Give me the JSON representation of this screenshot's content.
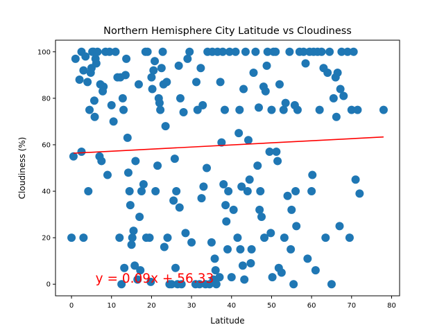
{
  "chart_data": {
    "type": "scatter",
    "title": "Northern Hemisphere City Latitude vs Cloudiness",
    "xlabel": "Latitude",
    "ylabel": "Cloudiness (%)",
    "xlim": [
      -4,
      82
    ],
    "ylim": [
      -5,
      105
    ],
    "xticks": [
      0,
      10,
      20,
      30,
      40,
      50,
      60,
      70,
      80
    ],
    "yticks": [
      0,
      20,
      40,
      60,
      80,
      100
    ],
    "grid": false,
    "marker_color": "#1f77b4",
    "regression": {
      "slope": 0.09,
      "intercept": 56.33,
      "x_range": [
        0.5,
        78
      ],
      "color": "#ff0000",
      "equation_label": "y = 0.09x + 56.33",
      "equation_anchor": [
        6,
        0
      ]
    },
    "points": [
      [
        0,
        20
      ],
      [
        0.5,
        55
      ],
      [
        1,
        97
      ],
      [
        2,
        88
      ],
      [
        2.5,
        57
      ],
      [
        2.5,
        100
      ],
      [
        3,
        20
      ],
      [
        3,
        92
      ],
      [
        3.5,
        98
      ],
      [
        4,
        87
      ],
      [
        4.2,
        40
      ],
      [
        4.5,
        75
      ],
      [
        4.8,
        91
      ],
      [
        5,
        93
      ],
      [
        5.2,
        100
      ],
      [
        5.5,
        100
      ],
      [
        5.7,
        79
      ],
      [
        5.8,
        72
      ],
      [
        6,
        97
      ],
      [
        6.2,
        95
      ],
      [
        6.5,
        100
      ],
      [
        7,
        55
      ],
      [
        7.2,
        86
      ],
      [
        7.5,
        53
      ],
      [
        7.8,
        83
      ],
      [
        8,
        85
      ],
      [
        8.5,
        100
      ],
      [
        9,
        47
      ],
      [
        9.5,
        100
      ],
      [
        10,
        77
      ],
      [
        10.5,
        70
      ],
      [
        11,
        100
      ],
      [
        11.5,
        89
      ],
      [
        12,
        20
      ],
      [
        12.2,
        89
      ],
      [
        12.5,
        0
      ],
      [
        12.8,
        80
      ],
      [
        13,
        75
      ],
      [
        13.2,
        7
      ],
      [
        13.5,
        90
      ],
      [
        13.7,
        97
      ],
      [
        14,
        63
      ],
      [
        14.2,
        48
      ],
      [
        14.5,
        40
      ],
      [
        14.7,
        34
      ],
      [
        15,
        17
      ],
      [
        15.2,
        20
      ],
      [
        15.5,
        23
      ],
      [
        15.8,
        8
      ],
      [
        16,
        53
      ],
      [
        16.5,
        2
      ],
      [
        16.8,
        86
      ],
      [
        17,
        29
      ],
      [
        17.2,
        6
      ],
      [
        17.5,
        40
      ],
      [
        18,
        43
      ],
      [
        18.5,
        100
      ],
      [
        18.7,
        20
      ],
      [
        19,
        100
      ],
      [
        19.5,
        20
      ],
      [
        19.8,
        1
      ],
      [
        20,
        89
      ],
      [
        20.2,
        84
      ],
      [
        20.5,
        92
      ],
      [
        20.8,
        96
      ],
      [
        21,
        40
      ],
      [
        21.5,
        51
      ],
      [
        21.8,
        80
      ],
      [
        22,
        78
      ],
      [
        22.2,
        75
      ],
      [
        22.5,
        93
      ],
      [
        22.8,
        100
      ],
      [
        23,
        86
      ],
      [
        23.2,
        16
      ],
      [
        23.5,
        68
      ],
      [
        23.8,
        87
      ],
      [
        24,
        20
      ],
      [
        24.5,
        0
      ],
      [
        25,
        0
      ],
      [
        25.5,
        36
      ],
      [
        25.8,
        54
      ],
      [
        26,
        7
      ],
      [
        26.2,
        40
      ],
      [
        26.5,
        0
      ],
      [
        26.8,
        94
      ],
      [
        27,
        33
      ],
      [
        27.2,
        80
      ],
      [
        27.5,
        0
      ],
      [
        28,
        74
      ],
      [
        28.5,
        22
      ],
      [
        29,
        97
      ],
      [
        29.5,
        100
      ],
      [
        30,
        18
      ],
      [
        31,
        0
      ],
      [
        31.2,
        87
      ],
      [
        31.5,
        75
      ],
      [
        32,
        0
      ],
      [
        32.3,
        93
      ],
      [
        32.5,
        37
      ],
      [
        32.8,
        77
      ],
      [
        33,
        42
      ],
      [
        33.5,
        0
      ],
      [
        33.8,
        50
      ],
      [
        34,
        100
      ],
      [
        34.5,
        0
      ],
      [
        35,
        18
      ],
      [
        35.2,
        100
      ],
      [
        35.5,
        2
      ],
      [
        35.8,
        11
      ],
      [
        36,
        6
      ],
      [
        36.2,
        0
      ],
      [
        36.5,
        100
      ],
      [
        37,
        3
      ],
      [
        37.2,
        87
      ],
      [
        37.5,
        61
      ],
      [
        37.8,
        100
      ],
      [
        38,
        43
      ],
      [
        38.3,
        75
      ],
      [
        38.5,
        34
      ],
      [
        38.7,
        27
      ],
      [
        39,
        15
      ],
      [
        39.2,
        40
      ],
      [
        39.5,
        100
      ],
      [
        40,
        3
      ],
      [
        40.5,
        32
      ],
      [
        41,
        100
      ],
      [
        41.5,
        20
      ],
      [
        41.8,
        65
      ],
      [
        42,
        75
      ],
      [
        42.2,
        15
      ],
      [
        42.5,
        42
      ],
      [
        42.8,
        8
      ],
      [
        43,
        84
      ],
      [
        43.2,
        2
      ],
      [
        43.5,
        100
      ],
      [
        44,
        40
      ],
      [
        44.2,
        62
      ],
      [
        44.5,
        45
      ],
      [
        44.8,
        9
      ],
      [
        45,
        15
      ],
      [
        45.5,
        91
      ],
      [
        46,
        100
      ],
      [
        46.5,
        51
      ],
      [
        46.8,
        76
      ],
      [
        47,
        32
      ],
      [
        47.2,
        40
      ],
      [
        47.5,
        29
      ],
      [
        48,
        85
      ],
      [
        48.2,
        20
      ],
      [
        48.5,
        83
      ],
      [
        48.8,
        94
      ],
      [
        49,
        100
      ],
      [
        49.5,
        57
      ],
      [
        49.8,
        22
      ],
      [
        50,
        75
      ],
      [
        50.2,
        3
      ],
      [
        50.5,
        100
      ],
      [
        51,
        100
      ],
      [
        51.2,
        57
      ],
      [
        51.5,
        53
      ],
      [
        51.8,
        7
      ],
      [
        52,
        86
      ],
      [
        52.5,
        5
      ],
      [
        53,
        75
      ],
      [
        53.2,
        20
      ],
      [
        53.5,
        78
      ],
      [
        54,
        38
      ],
      [
        54.5,
        100
      ],
      [
        54.8,
        15
      ],
      [
        55,
        32
      ],
      [
        55.5,
        0
      ],
      [
        55.8,
        77
      ],
      [
        56,
        40
      ],
      [
        56.2,
        25
      ],
      [
        56.5,
        75
      ],
      [
        57,
        100
      ],
      [
        58,
        100
      ],
      [
        58.5,
        95
      ],
      [
        59,
        11
      ],
      [
        59.5,
        100
      ],
      [
        60,
        40
      ],
      [
        60.2,
        47
      ],
      [
        60.5,
        100
      ],
      [
        61,
        6
      ],
      [
        61.5,
        100
      ],
      [
        62,
        75
      ],
      [
        62.5,
        100
      ],
      [
        63,
        93
      ],
      [
        63.5,
        20
      ],
      [
        64,
        91
      ],
      [
        64.5,
        100
      ],
      [
        65,
        0
      ],
      [
        65.5,
        80
      ],
      [
        66,
        89
      ],
      [
        66.2,
        72
      ],
      [
        66.5,
        91
      ],
      [
        67,
        25
      ],
      [
        67.2,
        84
      ],
      [
        67.5,
        100
      ],
      [
        68,
        81
      ],
      [
        69,
        100
      ],
      [
        69.5,
        20
      ],
      [
        70,
        75
      ],
      [
        70.5,
        100
      ],
      [
        71,
        45
      ],
      [
        71.5,
        75
      ],
      [
        72,
        39
      ],
      [
        78,
        75
      ]
    ]
  }
}
